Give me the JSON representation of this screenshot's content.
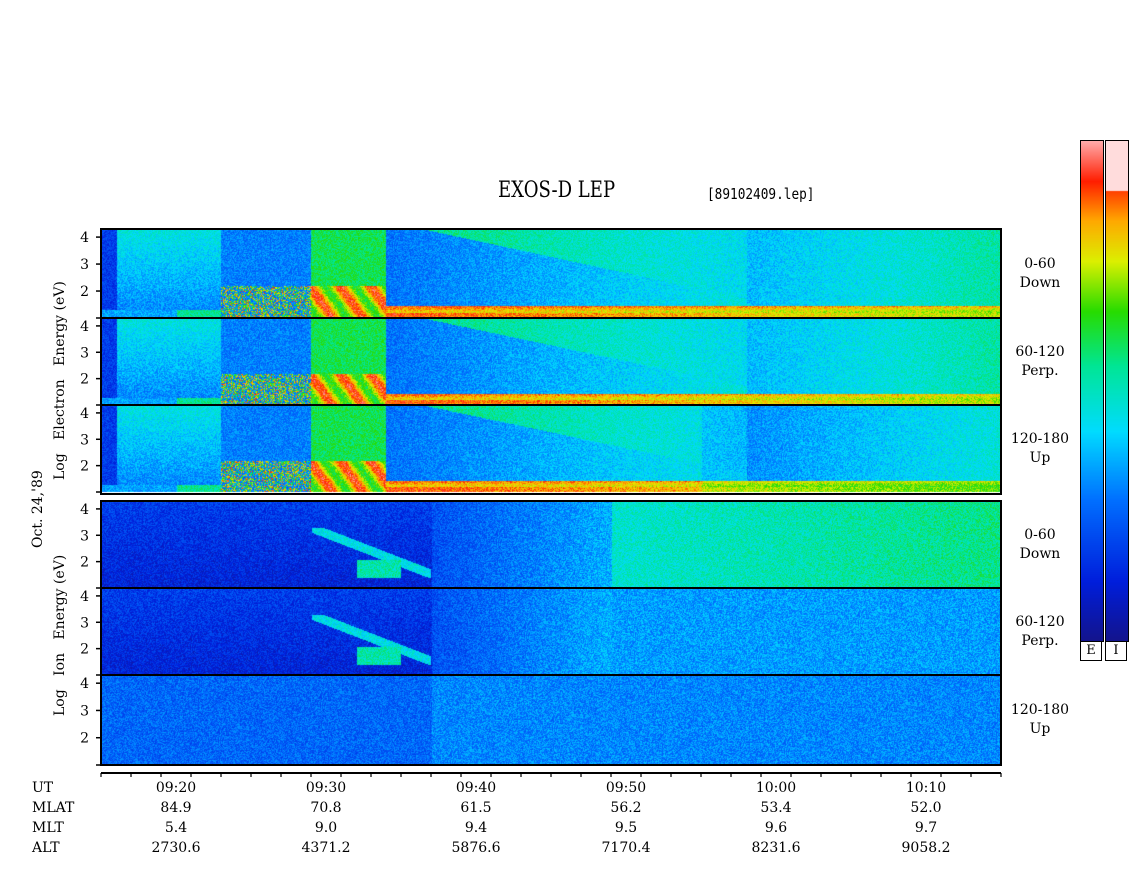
{
  "title": "EXOS-D LEP",
  "filename": "[89102409.lep]",
  "date_label": "Oct. 24,'89",
  "electron_axis_label": [
    "Log",
    "Electron",
    "Energy",
    "(eV)"
  ],
  "ion_axis_label": [
    "Log",
    "Ion",
    "Energy",
    "(eV)"
  ],
  "colorbar": {
    "labels": [
      "E",
      "I"
    ]
  },
  "chart_data": {
    "type": "heatmap",
    "description_axes": "x: UT time, y: log energy (eV)",
    "x_range": [
      "09:15",
      "10:15"
    ],
    "y_range": [
      1,
      4.3
    ],
    "y_ticks": [
      "1",
      "2",
      "3",
      "4"
    ],
    "x_ticks": [
      "09:20",
      "09:30",
      "09:40",
      "09:50",
      "10:00",
      "10:10"
    ],
    "panels": [
      {
        "species": "Electron",
        "pitch": "0-60",
        "direction": "Down"
      },
      {
        "species": "Electron",
        "pitch": "60-120",
        "direction": "Perp."
      },
      {
        "species": "Electron",
        "pitch": "120-180",
        "direction": "Up"
      },
      {
        "species": "Ion",
        "pitch": "0-60",
        "direction": "Down"
      },
      {
        "species": "Ion",
        "pitch": "60-120",
        "direction": "Perp."
      },
      {
        "species": "Ion",
        "pitch": "120-180",
        "direction": "Up"
      }
    ],
    "ephemeris": {
      "rows": [
        {
          "label": "UT",
          "values": [
            "09:20",
            "09:30",
            "09:40",
            "09:50",
            "10:00",
            "10:10"
          ]
        },
        {
          "label": "MLAT",
          "values": [
            "84.9",
            "70.8",
            "61.5",
            "56.2",
            "53.4",
            "52.0"
          ]
        },
        {
          "label": "MLT",
          "values": [
            "5.4",
            "9.0",
            "9.4",
            "9.5",
            "9.6",
            "9.7"
          ]
        },
        {
          "label": "ALT",
          "values": [
            "2730.6",
            "4371.2",
            "5876.6",
            "7170.4",
            "8231.6",
            "9058.2"
          ]
        }
      ]
    }
  }
}
